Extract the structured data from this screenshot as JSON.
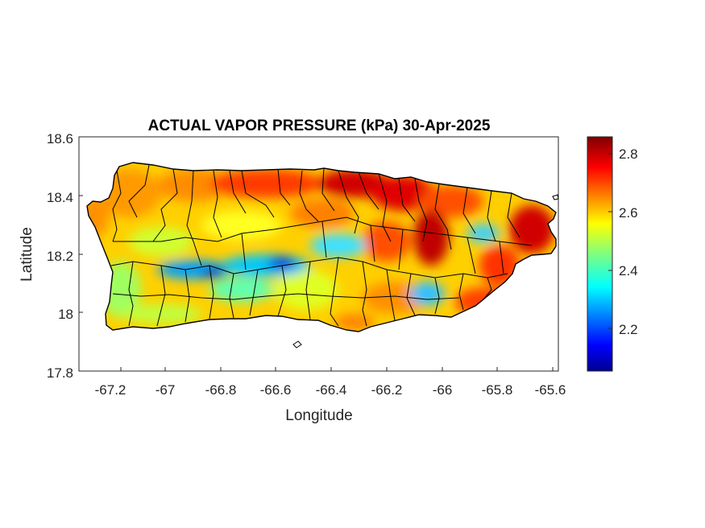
{
  "title": "ACTUAL VAPOR PRESSURE (kPa) 30-Apr-2025",
  "xlabel": "Longitude",
  "ylabel": "Latitude",
  "xticks": [
    "-67.2",
    "-67",
    "-66.8",
    "-66.6",
    "-66.4",
    "-66.2",
    "-66",
    "-65.8",
    "-65.6"
  ],
  "yticks": [
    "18.6",
    "18.4",
    "18.2",
    "18",
    "17.8"
  ],
  "colorbar": {
    "ticks": [
      "2.8",
      "2.6",
      "2.4",
      "2.2"
    ],
    "min": 2.05,
    "max": 2.86,
    "colormap": "jet"
  },
  "map_data": {
    "type": "heatmap",
    "region": "Puerto Rico",
    "variable": "Actual vapor pressure",
    "units": "kPa",
    "date": "30-Apr-2025",
    "xlim": [
      -67.3,
      -65.58
    ],
    "ylim": [
      17.8,
      18.6
    ],
    "municipality_borders": true,
    "features": [
      {
        "description": "High vapor pressure (~2.8-2.86) along north-central coast",
        "lon": -66.35,
        "lat": 18.47,
        "value": 2.82
      },
      {
        "description": "High vapor pressure core in east-central interior",
        "lon": -66.03,
        "lat": 18.25,
        "value": 2.85
      },
      {
        "description": "High values along east coast",
        "lon": -65.65,
        "lat": 18.3,
        "value": 2.8
      },
      {
        "description": "Low vapor pressure (~2.2) along central mountain ridge",
        "lon": -66.58,
        "lat": 18.17,
        "value": 2.2
      },
      {
        "description": "Low values west-central cordillera",
        "lon": -66.85,
        "lat": 18.15,
        "value": 2.25
      },
      {
        "description": "Moderate values (~2.5-2.6) southern coast",
        "lon": -66.4,
        "lat": 17.98,
        "value": 2.55
      }
    ]
  }
}
